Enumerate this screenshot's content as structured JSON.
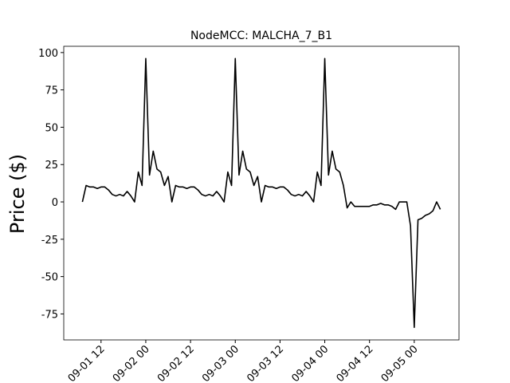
{
  "chart_data": {
    "type": "line",
    "title": "NodeMCC: MALCHA_7_B1",
    "y_label": "Price ($)",
    "x": [
      "09-01 07",
      "09-01 08",
      "09-01 09",
      "09-01 10",
      "09-01 11",
      "09-01 12",
      "09-01 13",
      "09-01 14",
      "09-01 15",
      "09-01 16",
      "09-01 17",
      "09-01 18",
      "09-01 19",
      "09-01 20",
      "09-01 21",
      "09-01 22",
      "09-01 23",
      "09-02 00",
      "09-02 01",
      "09-02 02",
      "09-02 03",
      "09-02 04",
      "09-02 05",
      "09-02 06",
      "09-02 07",
      "09-02 08",
      "09-02 09",
      "09-02 10",
      "09-02 11",
      "09-02 12",
      "09-02 13",
      "09-02 14",
      "09-02 15",
      "09-02 16",
      "09-02 17",
      "09-02 18",
      "09-02 19",
      "09-02 20",
      "09-02 21",
      "09-02 22",
      "09-02 23",
      "09-03 00",
      "09-03 01",
      "09-03 02",
      "09-03 03",
      "09-03 04",
      "09-03 05",
      "09-03 06",
      "09-03 07",
      "09-03 08",
      "09-03 09",
      "09-03 10",
      "09-03 11",
      "09-03 12",
      "09-03 13",
      "09-03 14",
      "09-03 15",
      "09-03 16",
      "09-03 17",
      "09-03 18",
      "09-03 19",
      "09-03 20",
      "09-03 21",
      "09-03 22",
      "09-03 23",
      "09-04 00",
      "09-04 01",
      "09-04 02",
      "09-04 03",
      "09-04 04",
      "09-04 05",
      "09-04 06",
      "09-04 07",
      "09-04 08",
      "09-04 09",
      "09-04 10",
      "09-04 11",
      "09-04 12",
      "09-04 13",
      "09-04 14",
      "09-04 15",
      "09-04 16",
      "09-04 17",
      "09-04 18",
      "09-04 19",
      "09-04 20",
      "09-04 21",
      "09-04 22",
      "09-04 23",
      "09-05 00",
      "09-05 01",
      "09-05 02",
      "09-05 03",
      "09-05 04",
      "09-05 05",
      "09-05 06",
      "09-05 07"
    ],
    "series": [
      {
        "color": "#000000",
        "values": [
          0,
          11,
          10,
          10,
          9,
          10,
          10,
          8,
          5,
          4,
          5,
          4,
          7,
          4,
          0,
          20,
          11,
          96,
          18,
          34,
          22,
          20,
          11,
          17,
          0,
          11,
          10,
          10,
          9,
          10,
          10,
          8,
          5,
          4,
          5,
          4,
          7,
          4,
          0,
          20,
          11,
          96,
          18,
          34,
          22,
          20,
          11,
          17,
          0,
          11,
          10,
          10,
          9,
          10,
          10,
          8,
          5,
          4,
          5,
          4,
          7,
          4,
          0,
          20,
          11,
          96,
          18,
          34,
          22,
          20,
          11,
          -4,
          0,
          -3,
          -3,
          -3,
          -3,
          -3,
          -2,
          -2,
          -1,
          -2,
          -2,
          -3,
          -5,
          0,
          0,
          0,
          -16,
          -84,
          -12,
          -11,
          -9,
          -8,
          -6,
          0,
          -5
        ]
      }
    ],
    "xlim": [
      "09-01 02",
      "09-05 12"
    ],
    "xticks": [
      "09-01 12",
      "09-02 00",
      "09-02 12",
      "09-03 00",
      "09-03 12",
      "09-04 00",
      "09-04 12",
      "09-05 00"
    ],
    "ylim": [
      -92.4,
      104.2
    ],
    "yticks": [
      -75,
      -50,
      -25,
      0,
      25,
      50,
      75,
      100
    ]
  }
}
